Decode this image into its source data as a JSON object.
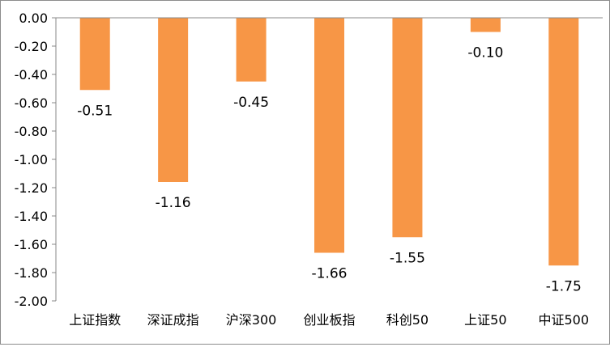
{
  "chart_data": {
    "type": "bar",
    "title": "",
    "xlabel": "",
    "ylabel": "",
    "categories": [
      "上证指数",
      "深证成指",
      "沪深300",
      "创业板指",
      "科创50",
      "上证50",
      "中证500"
    ],
    "values": [
      -0.51,
      -1.16,
      -0.45,
      -1.66,
      -1.55,
      -0.1,
      -1.75
    ],
    "data_labels": [
      "-0.51",
      "-1.16",
      "-0.45",
      "-1.66",
      "-1.55",
      "-0.10",
      "-1.75"
    ],
    "yticks": [
      "0.00",
      "-0.20",
      "-0.40",
      "-0.60",
      "-0.80",
      "-1.00",
      "-1.20",
      "-1.40",
      "-1.60",
      "-1.80",
      "-2.00"
    ],
    "ylim": [
      -2.0,
      0.0
    ],
    "ytick_step": 0.2,
    "grid": false,
    "legend": "none",
    "bar_color": "#F79646",
    "axis_color": "#898989"
  }
}
